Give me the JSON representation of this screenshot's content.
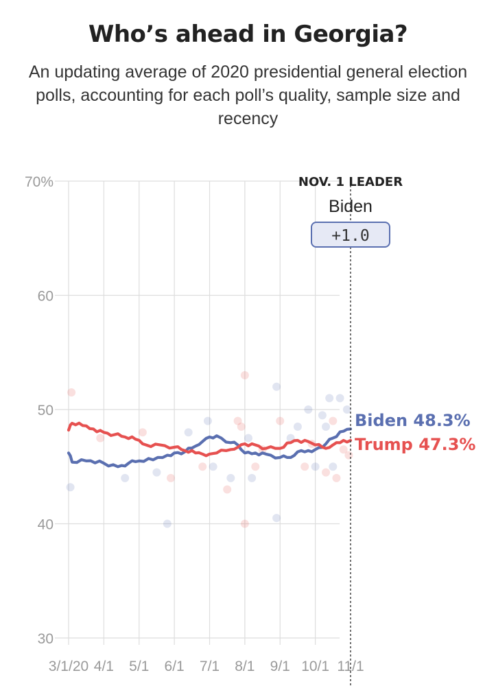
{
  "title": "Who’s ahead in Georgia?",
  "subtitle": "An updating average of 2020 presidential general election polls, accounting for each poll’s quality, sample size and recency",
  "colors": {
    "biden": "#5a6fb0",
    "trump": "#e65150",
    "grid": "#dddddd",
    "tick": "#999999",
    "badge_fill": "#e6e9f5",
    "badge_stroke": "#5a6fb0"
  },
  "leader": {
    "label": "NOV. 1 LEADER",
    "name": "Biden",
    "margin": "+1.0"
  },
  "chart_data": {
    "type": "line",
    "title": "Who’s ahead in Georgia?",
    "ylim": [
      30,
      70
    ],
    "y_ticks": [
      70,
      60,
      50,
      40,
      30
    ],
    "y_tick_labels": [
      "70%",
      "60",
      "50",
      "40",
      "30"
    ],
    "x_ticks": [
      0,
      1,
      2,
      3,
      4,
      5,
      6,
      7,
      8
    ],
    "x_tick_labels": [
      "3/1/20",
      "4/1",
      "5/1",
      "6/1",
      "7/1",
      "8/1",
      "9/1",
      "10/1",
      "11/1"
    ],
    "xlim": [
      0,
      8.0
    ],
    "grid": true,
    "end_labels": [
      "Biden 48.3%",
      "Trump 47.3%"
    ],
    "series": [
      {
        "name": "Biden",
        "color": "#5a6fb0",
        "final": 48.3,
        "x": [
          0,
          0.1,
          0.5,
          1.0,
          1.4,
          1.7,
          2.0,
          2.4,
          2.8,
          3.0,
          3.3,
          3.6,
          3.8,
          4.0,
          4.2,
          4.6,
          4.8,
          5.0,
          5.3,
          5.6,
          6.0,
          6.3,
          6.5,
          6.8,
          7.0,
          7.3,
          7.5,
          7.8,
          8.0
        ],
        "values": [
          46.2,
          45.4,
          45.5,
          45.3,
          45.0,
          45.3,
          45.5,
          45.6,
          46.0,
          46.2,
          46.3,
          46.8,
          47.2,
          47.6,
          47.7,
          47.1,
          46.9,
          46.2,
          46.2,
          46.1,
          45.8,
          45.8,
          46.3,
          46.4,
          46.5,
          47.0,
          47.5,
          48.1,
          48.3
        ]
      },
      {
        "name": "Trump",
        "color": "#e65150",
        "final": 47.3,
        "x": [
          0,
          0.1,
          0.4,
          0.7,
          1.0,
          1.3,
          1.6,
          1.9,
          2.2,
          2.6,
          3.0,
          3.3,
          3.6,
          3.8,
          4.0,
          4.2,
          4.6,
          4.8,
          5.0,
          5.3,
          5.6,
          6.0,
          6.3,
          6.5,
          6.8,
          7.0,
          7.3,
          7.5,
          7.8,
          8.0
        ],
        "values": [
          48.2,
          48.8,
          48.6,
          48.3,
          48.0,
          47.8,
          47.6,
          47.4,
          46.9,
          46.9,
          46.7,
          46.4,
          46.2,
          46.1,
          46.1,
          46.2,
          46.5,
          46.7,
          47.0,
          46.9,
          46.6,
          46.6,
          47.1,
          47.3,
          47.2,
          46.9,
          46.6,
          46.9,
          47.3,
          47.3
        ]
      }
    ],
    "polls": [
      {
        "x": 0.05,
        "y": 43.2,
        "party": "biden"
      },
      {
        "x": 0.08,
        "y": 51.5,
        "party": "trump"
      },
      {
        "x": 0.9,
        "y": 47.5,
        "party": "trump"
      },
      {
        "x": 1.6,
        "y": 44.0,
        "party": "biden"
      },
      {
        "x": 2.1,
        "y": 48.0,
        "party": "trump"
      },
      {
        "x": 2.5,
        "y": 44.5,
        "party": "biden"
      },
      {
        "x": 2.8,
        "y": 40.0,
        "party": "biden"
      },
      {
        "x": 2.9,
        "y": 44.0,
        "party": "trump"
      },
      {
        "x": 3.4,
        "y": 48.0,
        "party": "biden"
      },
      {
        "x": 3.8,
        "y": 45.0,
        "party": "trump"
      },
      {
        "x": 3.95,
        "y": 49.0,
        "party": "biden"
      },
      {
        "x": 4.1,
        "y": 45.0,
        "party": "biden"
      },
      {
        "x": 4.5,
        "y": 43.0,
        "party": "trump"
      },
      {
        "x": 4.6,
        "y": 44.0,
        "party": "biden"
      },
      {
        "x": 4.8,
        "y": 49.0,
        "party": "trump"
      },
      {
        "x": 4.9,
        "y": 48.5,
        "party": "trump"
      },
      {
        "x": 5.0,
        "y": 53.0,
        "party": "trump"
      },
      {
        "x": 5.0,
        "y": 40.0,
        "party": "trump"
      },
      {
        "x": 5.1,
        "y": 47.5,
        "party": "biden"
      },
      {
        "x": 5.2,
        "y": 44.0,
        "party": "biden"
      },
      {
        "x": 5.3,
        "y": 45.0,
        "party": "trump"
      },
      {
        "x": 5.5,
        "y": 46.5,
        "party": "trump"
      },
      {
        "x": 5.9,
        "y": 52.0,
        "party": "biden"
      },
      {
        "x": 5.9,
        "y": 40.5,
        "party": "biden"
      },
      {
        "x": 6.0,
        "y": 49.0,
        "party": "trump"
      },
      {
        "x": 6.3,
        "y": 47.5,
        "party": "biden"
      },
      {
        "x": 6.5,
        "y": 48.5,
        "party": "biden"
      },
      {
        "x": 6.7,
        "y": 45.0,
        "party": "trump"
      },
      {
        "x": 6.8,
        "y": 50.0,
        "party": "biden"
      },
      {
        "x": 6.9,
        "y": 47.0,
        "party": "trump"
      },
      {
        "x": 7.0,
        "y": 45.0,
        "party": "biden"
      },
      {
        "x": 7.2,
        "y": 49.5,
        "party": "biden"
      },
      {
        "x": 7.3,
        "y": 48.5,
        "party": "biden"
      },
      {
        "x": 7.3,
        "y": 44.5,
        "party": "trump"
      },
      {
        "x": 7.4,
        "y": 51.0,
        "party": "biden"
      },
      {
        "x": 7.5,
        "y": 49.0,
        "party": "trump"
      },
      {
        "x": 7.5,
        "y": 45.0,
        "party": "biden"
      },
      {
        "x": 7.6,
        "y": 44.0,
        "party": "trump"
      },
      {
        "x": 7.7,
        "y": 51.0,
        "party": "biden"
      },
      {
        "x": 7.8,
        "y": 46.5,
        "party": "trump"
      },
      {
        "x": 7.9,
        "y": 50.0,
        "party": "biden"
      },
      {
        "x": 7.95,
        "y": 46.0,
        "party": "trump"
      }
    ]
  }
}
